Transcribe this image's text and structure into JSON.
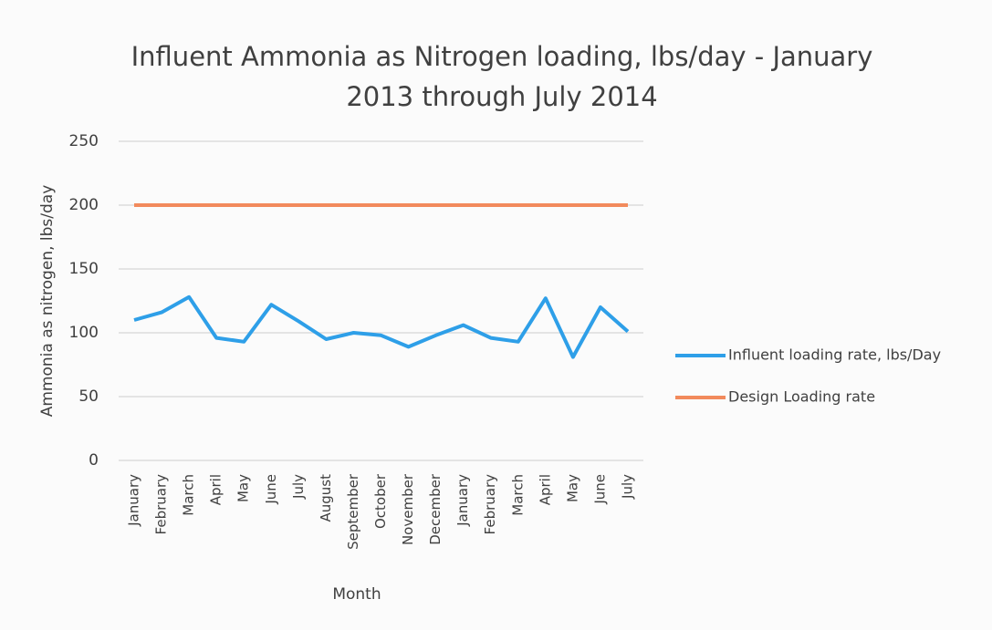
{
  "chart_data": {
    "type": "line",
    "title": "Influent Ammonia as Nitrogen loading, lbs/day - January 2013 through July 2014",
    "x_label": "Month",
    "y_label": "Ammonia as nitrogen, lbs/day",
    "categories": [
      "January",
      "February",
      "March",
      "April",
      "May",
      "June",
      "July",
      "August",
      "September",
      "October",
      "November",
      "December",
      "January",
      "February",
      "March",
      "April",
      "May",
      "June",
      "July"
    ],
    "series": [
      {
        "name": "Influent loading rate, lbs/Day",
        "color": "#2e9fe8",
        "values": [
          110,
          116,
          128,
          96,
          93,
          122,
          109,
          95,
          100,
          98,
          89,
          98,
          106,
          96,
          93,
          127,
          81,
          120,
          101
        ]
      },
      {
        "name": "Design Loading rate",
        "color": "#f28a5c",
        "values": [
          200,
          200,
          200,
          200,
          200,
          200,
          200,
          200,
          200,
          200,
          200,
          200,
          200,
          200,
          200,
          200,
          200,
          200,
          200
        ]
      }
    ],
    "ylim": [
      0,
      250
    ],
    "yticks": [
      0,
      50,
      100,
      150,
      200,
      250
    ],
    "grid": true,
    "legend": "right"
  }
}
